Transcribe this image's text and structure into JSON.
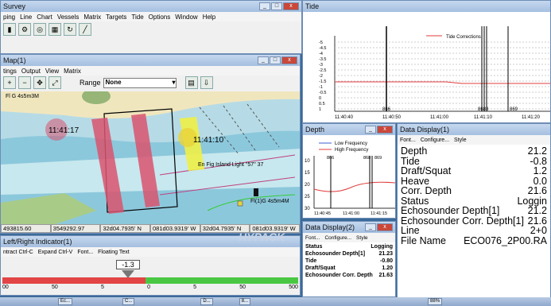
{
  "survey": {
    "title": "Survey",
    "menu": [
      "ping",
      "Line",
      "Chart",
      "Vessels",
      "Matrix",
      "Targets",
      "Tide",
      "Options",
      "Window",
      "Help"
    ]
  },
  "map": {
    "title": "Map(1)",
    "menu": [
      "tings",
      "Output",
      "View",
      "Matrix"
    ],
    "range_label": "Range",
    "range_value": "None",
    "label_topleft": "Fl G 4s5m3M",
    "time_left": "11:41:17",
    "time_boat": "11:41:10",
    "light_label": "En Fig Island Light \"57\" 37",
    "buoy_label": "Fl(1)G 4s5m4M",
    "status": [
      "493815.60",
      "3549292.97",
      "32d04.7935' N",
      "081d03.9319' W",
      "32d04.7935' N",
      "081d03.9319' W"
    ]
  },
  "tide": {
    "title": "Tide",
    "legend": "Tide Corrections",
    "yticks": [
      "-5",
      "-4.5",
      "-4",
      "-3.5",
      "-3",
      "-2.5",
      "-2",
      "-1.5",
      "-1",
      "-0.5",
      "0",
      "0.5",
      "1"
    ],
    "xticks": [
      "11:40:40",
      "11:41:00",
      "11:41:10",
      "11:41:20"
    ],
    "xtick_partial": "11:40:50",
    "markers": [
      "866",
      "8688",
      "869"
    ]
  },
  "depth": {
    "title": "Depth",
    "legend_low": "Low Frequency",
    "legend_high": "High Frequency",
    "yticks": [
      "10",
      "15",
      "20",
      "25",
      "30"
    ],
    "xticks": [
      "11:40:45",
      "11:41:00",
      "11:41:15"
    ],
    "markers": [
      "866",
      "868",
      "869"
    ]
  },
  "dd1": {
    "title": "Data Display(1)",
    "menu": [
      "Font...",
      "Configure...",
      "Style"
    ],
    "rows": [
      {
        "label": "Depth",
        "value": "21.2"
      },
      {
        "label": "Tide",
        "value": "-0.8"
      },
      {
        "label": "Draft/Squat",
        "value": "1.2"
      },
      {
        "label": "Heave",
        "value": "0.0"
      },
      {
        "label": "Corr. Depth",
        "value": "21.6"
      },
      {
        "label": "Status",
        "value": "Loggin"
      },
      {
        "label": "Echosounder Depth[1]",
        "value": "21.2"
      },
      {
        "label": "Echosounder Corr. Depth[1]",
        "value": "21.6"
      },
      {
        "label": "Line",
        "value": "2+0"
      },
      {
        "label": "File Name",
        "value": "ECO076_2P00.RA"
      }
    ]
  },
  "dd2": {
    "title": "Data Display(2)",
    "menu": [
      "Font...",
      "Configure...",
      "Style"
    ],
    "rows": [
      {
        "label": "Status",
        "value": "Logging"
      },
      {
        "label": "Echosounder Depth[1]",
        "value": "21.23"
      },
      {
        "label": "Tide",
        "value": "-0.80"
      },
      {
        "label": "Draft/Squat",
        "value": "1.20"
      },
      {
        "label": "Echosounder Corr. Depth",
        "value": "21.63"
      }
    ]
  },
  "lr": {
    "title": "Left/Right Indicator(1)",
    "menu": [
      "ntract Ctrl-C",
      "Expand Ctrl-V",
      "Font...",
      "Floating Text"
    ],
    "value": "-1.3",
    "ticks": [
      "00",
      "50",
      "5",
      "0",
      "5",
      "50",
      "500"
    ]
  },
  "hypack": "HYPACK",
  "taskbar": [
    "Ec...",
    "C...",
    "D...",
    "8...",
    "88%"
  ]
}
